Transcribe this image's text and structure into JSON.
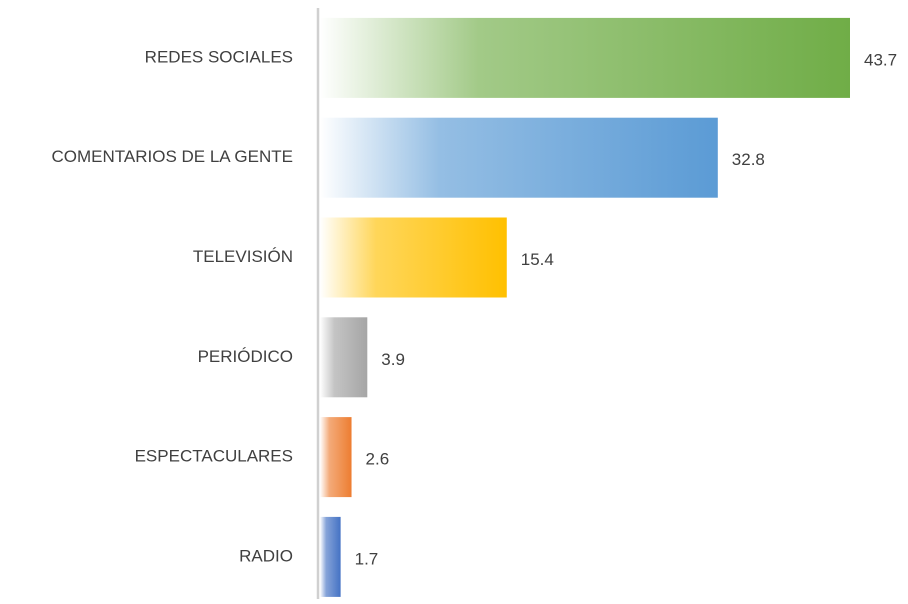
{
  "chart_data": {
    "type": "bar",
    "orientation": "horizontal",
    "categories": [
      "REDES SOCIALES",
      "COMENTARIOS DE LA GENTE",
      "TELEVISIÓN",
      "PERIÓDICO",
      "ESPECTACULARES",
      "RADIO"
    ],
    "values": [
      43.7,
      32.8,
      15.4,
      3.9,
      2.6,
      1.7
    ],
    "colors": [
      "#70ad47",
      "#5b9bd5",
      "#ffc000",
      "#a5a5a5",
      "#ed7d31",
      "#4472c4"
    ],
    "gradient": true
  }
}
